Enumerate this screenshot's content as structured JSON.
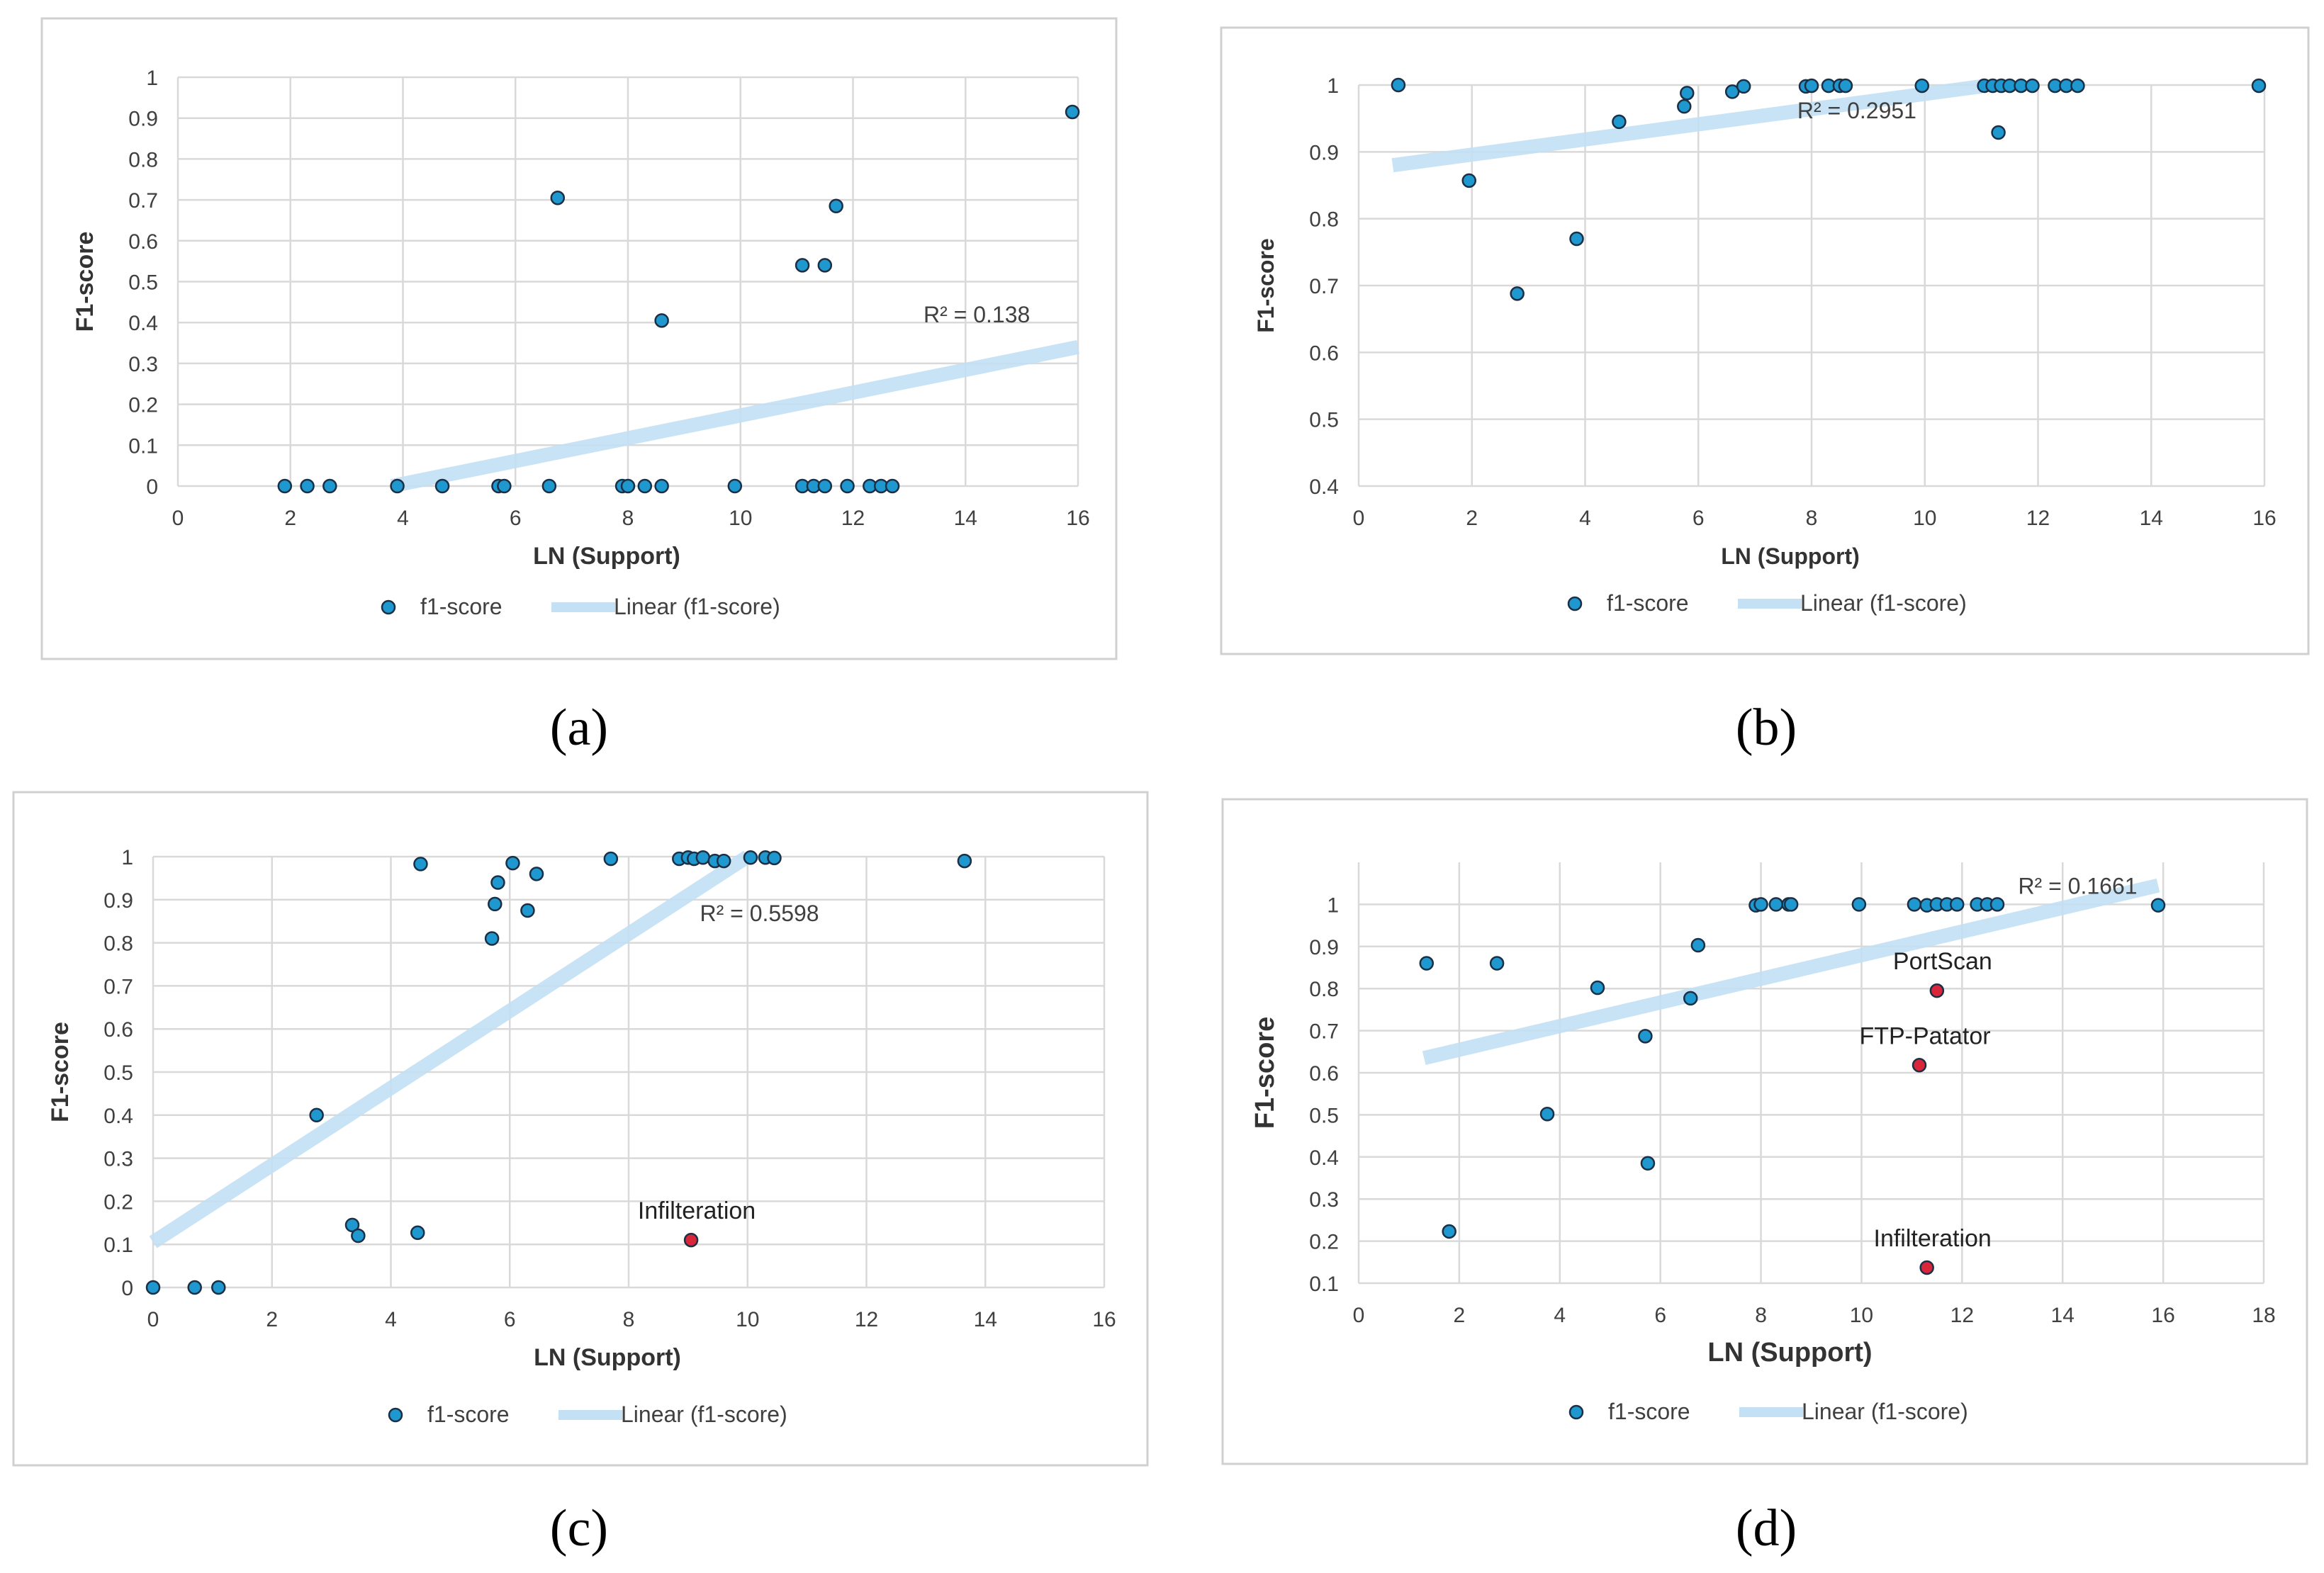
{
  "figure": {
    "captions": [
      "(a)",
      "(b)",
      "(c)",
      "(d)"
    ]
  },
  "colors": {
    "point": "#1f97cf",
    "point_stroke": "#1b2f45",
    "highlight": "#d9263b",
    "trend": "#c3e0f4",
    "grid": "#d9d9d9",
    "frame": "#d0d0d0",
    "text": "#404040"
  },
  "chart_data": [
    {
      "id": "a",
      "type": "scatter",
      "title": "",
      "xlabel": "LN (Support)",
      "ylabel": "F1-score",
      "xlim": [
        0,
        16
      ],
      "ylim": [
        0,
        1
      ],
      "xticks": [
        "0",
        "2",
        "4",
        "6",
        "8",
        "10",
        "12",
        "14",
        "16"
      ],
      "yticks": [
        "0",
        "0.1",
        "0.2",
        "0.3",
        "0.4",
        "0.5",
        "0.6",
        "0.7",
        "0.8",
        "0.9",
        "1"
      ],
      "grid": "vertical and horizontal",
      "legend": {
        "position": "bottom",
        "series_label": "f1-score",
        "trend_label": "Linear (f1-score)"
      },
      "r2_label": "R² = 0.138",
      "r2_at": [
        14.2,
        0.4
      ],
      "trendline": [
        [
          3.8,
          0.0
        ],
        [
          16.0,
          0.34
        ]
      ],
      "points": [
        [
          1.9,
          0
        ],
        [
          2.3,
          0
        ],
        [
          2.7,
          0
        ],
        [
          3.9,
          0
        ],
        [
          4.7,
          0
        ],
        [
          5.7,
          0
        ],
        [
          5.8,
          0
        ],
        [
          6.6,
          0
        ],
        [
          7.9,
          0
        ],
        [
          8.0,
          0
        ],
        [
          8.3,
          0
        ],
        [
          8.6,
          0
        ],
        [
          9.9,
          0
        ],
        [
          11.1,
          0
        ],
        [
          11.3,
          0
        ],
        [
          11.5,
          0
        ],
        [
          11.9,
          0
        ],
        [
          12.3,
          0
        ],
        [
          12.5,
          0
        ],
        [
          12.7,
          0
        ],
        [
          6.75,
          0.705
        ],
        [
          8.6,
          0.405
        ],
        [
          11.1,
          0.54
        ],
        [
          11.5,
          0.54
        ],
        [
          11.7,
          0.685
        ],
        [
          15.9,
          0.915
        ]
      ],
      "highlights": []
    },
    {
      "id": "b",
      "type": "scatter",
      "title": "",
      "xlabel": "LN (Support)",
      "ylabel": "F1-score",
      "xlim": [
        0,
        16
      ],
      "ylim": [
        0.4,
        1
      ],
      "xticks": [
        "0",
        "2",
        "4",
        "6",
        "8",
        "10",
        "12",
        "14",
        "16"
      ],
      "yticks": [
        "0.4",
        "0.5",
        "0.6",
        "0.7",
        "0.8",
        "0.9",
        "1"
      ],
      "grid": "vertical and horizontal",
      "legend": {
        "position": "bottom",
        "series_label": "f1-score",
        "trend_label": "Linear (f1-score)"
      },
      "r2_label": "R² = 0.2951",
      "r2_at": [
        8.8,
        0.95
      ],
      "trendline": [
        [
          0.6,
          0.88
        ],
        [
          11.0,
          0.998
        ]
      ],
      "points": [
        [
          0.7,
          1.0
        ],
        [
          1.95,
          0.857
        ],
        [
          2.8,
          0.688
        ],
        [
          3.85,
          0.77
        ],
        [
          4.6,
          0.945
        ],
        [
          5.75,
          0.968
        ],
        [
          5.8,
          0.988
        ],
        [
          6.6,
          0.99
        ],
        [
          6.8,
          0.998
        ],
        [
          7.9,
          0.998
        ],
        [
          8.0,
          0.999
        ],
        [
          8.3,
          0.999
        ],
        [
          8.5,
          0.999
        ],
        [
          8.6,
          0.999
        ],
        [
          9.95,
          0.999
        ],
        [
          11.05,
          0.999
        ],
        [
          11.2,
          0.999
        ],
        [
          11.3,
          0.929
        ],
        [
          11.35,
          0.999
        ],
        [
          11.5,
          0.999
        ],
        [
          11.7,
          0.999
        ],
        [
          11.9,
          0.999
        ],
        [
          12.3,
          0.999
        ],
        [
          12.5,
          0.999
        ],
        [
          12.7,
          0.999
        ],
        [
          15.9,
          0.999
        ]
      ],
      "highlights": []
    },
    {
      "id": "c",
      "type": "scatter",
      "title": "",
      "xlabel": "LN (Support)",
      "ylabel": "F1-score",
      "xlim": [
        0,
        16
      ],
      "ylim": [
        0,
        1
      ],
      "xticks": [
        "0",
        "2",
        "4",
        "6",
        "8",
        "10",
        "12",
        "14",
        "16"
      ],
      "yticks": [
        "0",
        "0.1",
        "0.2",
        "0.3",
        "0.4",
        "0.5",
        "0.6",
        "0.7",
        "0.8",
        "0.9",
        "1"
      ],
      "grid": "vertical and horizontal",
      "legend": {
        "position": "bottom",
        "series_label": "f1-score",
        "trend_label": "Linear (f1-score)"
      },
      "r2_label": "R² = 0.5598",
      "r2_at": [
        10.2,
        0.85
      ],
      "trendline": [
        [
          0.0,
          0.105
        ],
        [
          10.0,
          1.0
        ]
      ],
      "points": [
        [
          0.0,
          0
        ],
        [
          0.7,
          0
        ],
        [
          1.1,
          0
        ],
        [
          2.75,
          0.4
        ],
        [
          3.35,
          0.145
        ],
        [
          3.45,
          0.12
        ],
        [
          4.45,
          0.127
        ],
        [
          4.5,
          0.983
        ],
        [
          5.7,
          0.81
        ],
        [
          5.75,
          0.89
        ],
        [
          5.8,
          0.94
        ],
        [
          6.05,
          0.985
        ],
        [
          6.3,
          0.875
        ],
        [
          6.45,
          0.96
        ],
        [
          7.7,
          0.995
        ],
        [
          8.85,
          0.995
        ],
        [
          9.0,
          0.998
        ],
        [
          9.1,
          0.995
        ],
        [
          9.25,
          0.998
        ],
        [
          9.45,
          0.99
        ],
        [
          9.6,
          0.99
        ],
        [
          10.05,
          0.998
        ],
        [
          10.3,
          0.998
        ],
        [
          10.45,
          0.997
        ],
        [
          13.65,
          0.99
        ]
      ],
      "highlights": [
        {
          "label": "Infilteration",
          "point": [
            9.05,
            0.11
          ]
        }
      ]
    },
    {
      "id": "d",
      "type": "scatter",
      "title": "",
      "xlabel": "LN (Support)",
      "ylabel": "F1-score",
      "xlim": [
        0,
        18
      ],
      "ylim": [
        0.1,
        1.1
      ],
      "xticks": [
        "0",
        "2",
        "4",
        "6",
        "8",
        "10",
        "12",
        "14",
        "16",
        "18"
      ],
      "yticks": [
        "0.1",
        "0.2",
        "0.3",
        "0.4",
        "0.5",
        "0.6",
        "0.7",
        "0.8",
        "0.9",
        "1"
      ],
      "grid": "vertical and horizontal",
      "legend": {
        "position": "bottom",
        "series_label": "f1-score",
        "trend_label": "Linear (f1-score)"
      },
      "r2_label": "R² = 0.1661",
      "r2_at": [
        14.3,
        1.025
      ],
      "trendline": [
        [
          1.3,
          0.635
        ],
        [
          15.9,
          1.045
        ]
      ],
      "points": [
        [
          1.35,
          0.86
        ],
        [
          1.8,
          0.223
        ],
        [
          2.75,
          0.86
        ],
        [
          3.75,
          0.502
        ],
        [
          4.75,
          0.802
        ],
        [
          5.7,
          0.687
        ],
        [
          5.75,
          0.385
        ],
        [
          6.6,
          0.777
        ],
        [
          6.75,
          0.903
        ],
        [
          7.9,
          0.998
        ],
        [
          8.0,
          1.0
        ],
        [
          8.3,
          1.0
        ],
        [
          8.55,
          1.0
        ],
        [
          8.6,
          1.0
        ],
        [
          9.95,
          1.0
        ],
        [
          11.05,
          1.0
        ],
        [
          11.3,
          0.998
        ],
        [
          11.5,
          1.0
        ],
        [
          11.7,
          1.0
        ],
        [
          11.9,
          1.0
        ],
        [
          12.3,
          1.0
        ],
        [
          12.5,
          1.0
        ],
        [
          12.7,
          1.0
        ],
        [
          15.9,
          0.998
        ]
      ],
      "highlights": [
        {
          "label": "PortScan",
          "point": [
            11.5,
            0.795
          ]
        },
        {
          "label": "FTP-Patator",
          "point": [
            11.15,
            0.618
          ]
        },
        {
          "label": "Infilteration",
          "point": [
            11.3,
            0.137
          ]
        }
      ]
    }
  ]
}
